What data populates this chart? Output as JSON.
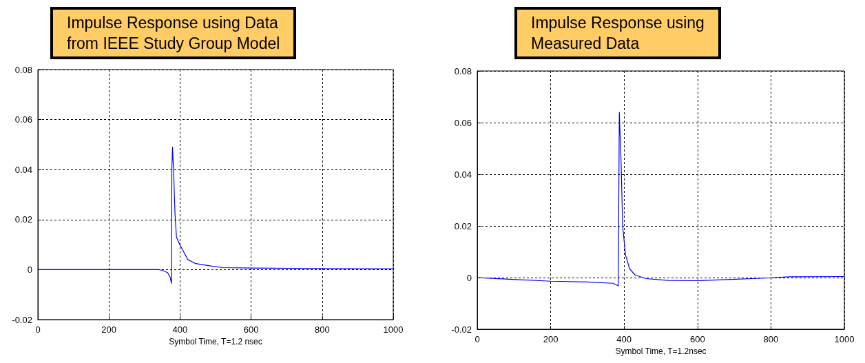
{
  "chart_data": [
    {
      "type": "line",
      "title": "Impulse Response using Data\nfrom IEEE Study Group Model",
      "xlabel": "Symbol Time, T=1.2 nsec",
      "xlim": [
        0,
        1000
      ],
      "xticks": [
        0,
        200,
        400,
        600,
        800,
        1000
      ],
      "ylim": [
        -0.02,
        0.08
      ],
      "yticks": [
        -0.02,
        0,
        0.02,
        0.04,
        0.06,
        0.08
      ],
      "grid": true,
      "marker": "none",
      "line_style": "solid",
      "series": [
        {
          "color": "#0000ff",
          "x": [
            0,
            340,
            350,
            365,
            372,
            376,
            377,
            379,
            380,
            382,
            384,
            386,
            390,
            400,
            422,
            444,
            489,
            519,
            600,
            787,
            1000
          ],
          "values": [
            0,
            0,
            -0.0003,
            -0.0012,
            -0.003,
            -0.0055,
            0.04,
            0.049,
            0.045,
            0.04,
            0.03,
            0.022,
            0.013,
            0.0098,
            0.004,
            0.0024,
            0.0014,
            0.0008,
            0.0006,
            0.0004,
            0.0003
          ]
        }
      ]
    },
    {
      "type": "line",
      "title": "Impulse Response using\nMeasured Data",
      "xlabel": "Symbol Time, T=1.2nsec",
      "xlim": [
        0,
        1000
      ],
      "xticks": [
        0,
        200,
        400,
        600,
        800,
        1000
      ],
      "ylim": [
        -0.02,
        0.08
      ],
      "yticks": [
        -0.02,
        0,
        0.02,
        0.04,
        0.06,
        0.08
      ],
      "grid": true,
      "marker": "none",
      "line_style": "solid",
      "series": [
        {
          "color": "#0000ff",
          "x": [
            0,
            40,
            200,
            300,
            370,
            384,
            387,
            392,
            396,
            404,
            415,
            430,
            460,
            520,
            603,
            693,
            784,
            851,
            1000
          ],
          "values": [
            0,
            -0.0003,
            -0.0014,
            -0.0017,
            -0.0022,
            -0.0032,
            0.064,
            0.044,
            0.02,
            0.0087,
            0.0034,
            0.001,
            -0.0004,
            -0.0011,
            -0.0012,
            -0.0007,
            -0.0002,
            0.0003,
            0.0004
          ]
        }
      ]
    }
  ]
}
